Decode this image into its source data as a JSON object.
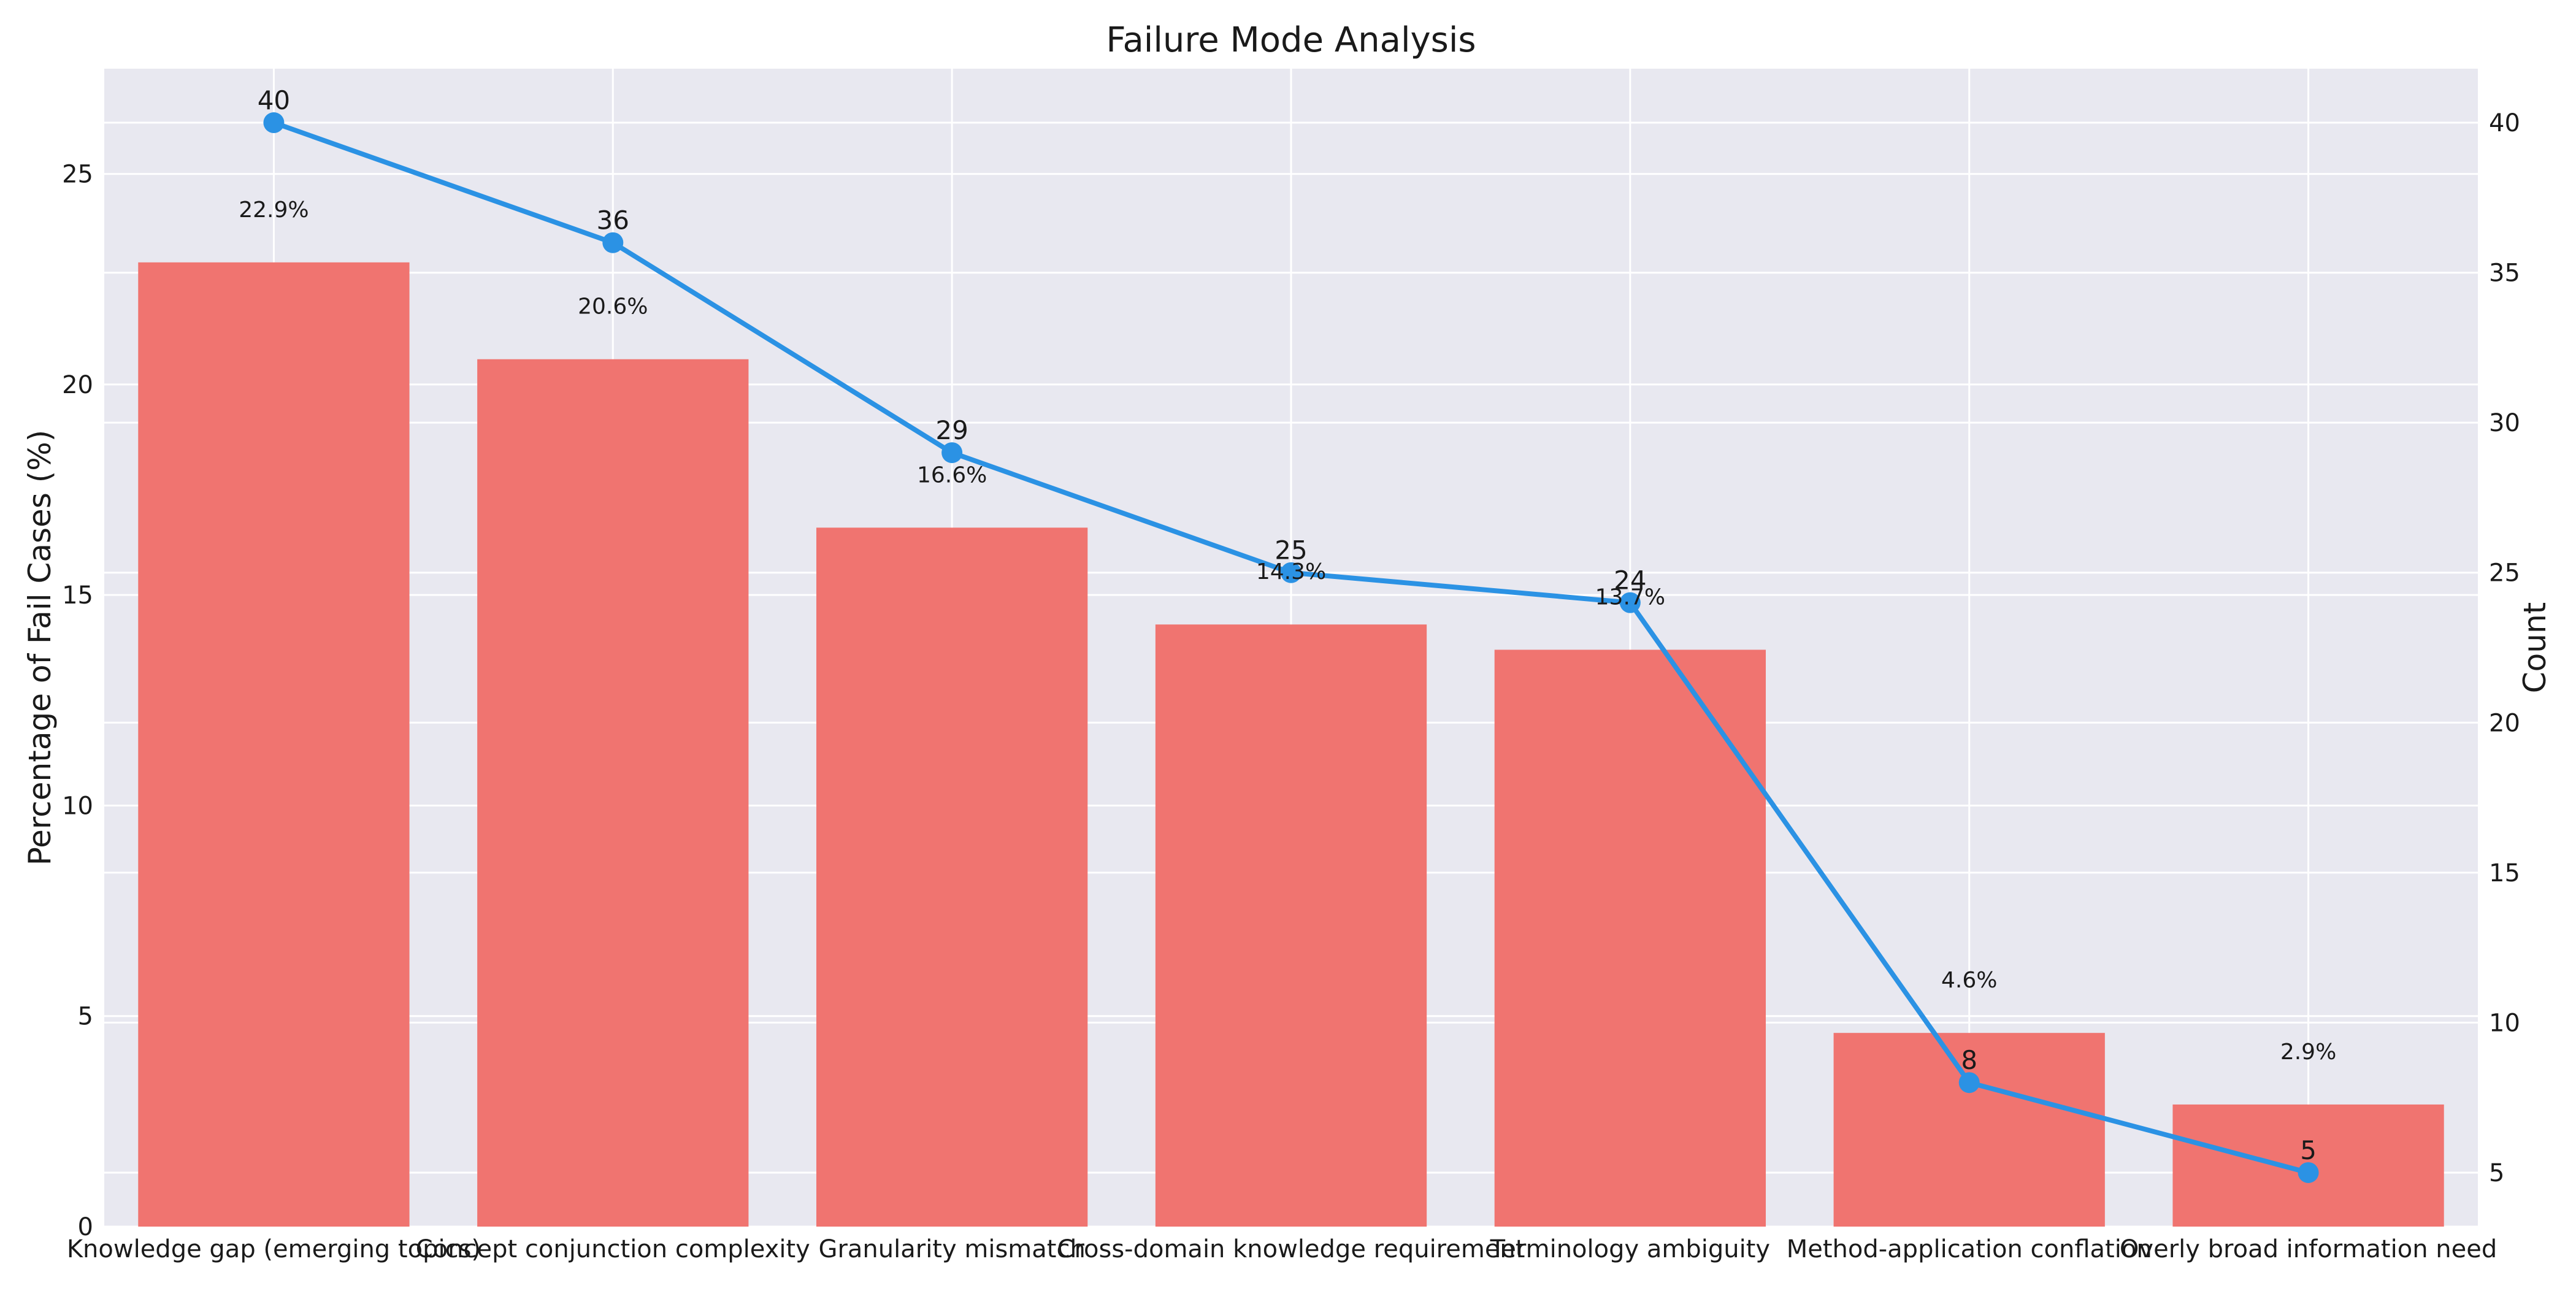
{
  "chart_data": {
    "type": "bar",
    "title": "Failure Mode Analysis",
    "categories": [
      "Knowledge gap (emerging topics)",
      "Concept conjunction complexity",
      "Granularity mismatch",
      "Cross-domain knowledge requirement",
      "Terminology ambiguity",
      "Method-application conflation",
      "Overly broad information need"
    ],
    "series": [
      {
        "type": "bar",
        "axis": "left",
        "values": [
          22.9,
          20.6,
          16.6,
          14.3,
          13.7,
          4.6,
          2.9
        ],
        "labels": [
          "22.9%",
          "20.6%",
          "16.6%",
          "14.3%",
          "13.7%",
          "4.6%",
          "2.9%"
        ],
        "color": "#f07470"
      },
      {
        "type": "line",
        "axis": "right",
        "values": [
          40,
          36,
          29,
          25,
          24,
          8,
          5
        ],
        "labels": [
          "40",
          "36",
          "29",
          "25",
          "24",
          "8",
          "5"
        ],
        "color": "#2b92e4"
      }
    ],
    "ylabel": "Percentage of Fail Cases (%)",
    "ylabel_right": "Count",
    "ylim": [
      0,
      27.5
    ],
    "ylim_right": [
      3.2,
      41.8
    ],
    "yticks": [
      0,
      5,
      10,
      15,
      20,
      25
    ],
    "yticks_right": [
      5,
      10,
      15,
      20,
      25,
      30,
      35,
      40
    ],
    "grid": true,
    "background": "#e8e8f0",
    "grid_color": "#ffffff"
  }
}
